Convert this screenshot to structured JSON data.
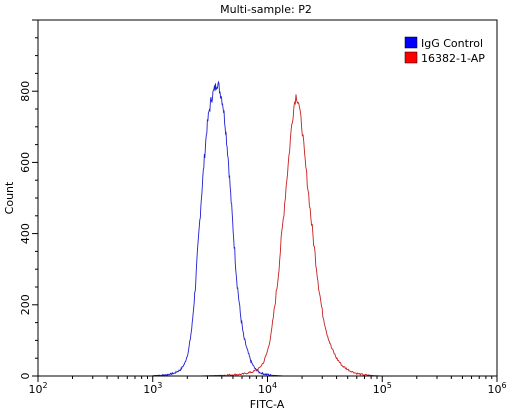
{
  "chart_data": {
    "type": "line",
    "title": "Multi-sample: P2",
    "xlabel": "FITC-A",
    "ylabel": "Count",
    "x_scale": "log",
    "xlim": [
      100,
      1000000
    ],
    "ylim": [
      0,
      1000
    ],
    "x_ticks": [
      {
        "value": 100,
        "base": "10",
        "exp": "2"
      },
      {
        "value": 1000,
        "base": "10",
        "exp": "3"
      },
      {
        "value": 10000,
        "base": "10",
        "exp": "4"
      },
      {
        "value": 100000,
        "base": "10",
        "exp": "5"
      },
      {
        "value": 1000000,
        "base": "10",
        "exp": "6"
      }
    ],
    "y_ticks": [
      0,
      200,
      400,
      600,
      800
    ],
    "grid": false,
    "legend_position": "top-right",
    "series": [
      {
        "name": "IgG Control",
        "color": "#1f1fd0",
        "legend_color": "#0000ff",
        "points": [
          [
            1000,
            1
          ],
          [
            1300,
            3
          ],
          [
            1550,
            8
          ],
          [
            1750,
            18
          ],
          [
            1900,
            35
          ],
          [
            2050,
            70
          ],
          [
            2200,
            140
          ],
          [
            2350,
            250
          ],
          [
            2500,
            380
          ],
          [
            2650,
            500
          ],
          [
            2800,
            600
          ],
          [
            2950,
            690
          ],
          [
            3100,
            745
          ],
          [
            3250,
            780
          ],
          [
            3400,
            800
          ],
          [
            3550,
            815
          ],
          [
            3650,
            825
          ],
          [
            3750,
            815
          ],
          [
            3850,
            800
          ],
          [
            3950,
            790
          ],
          [
            4100,
            760
          ],
          [
            4300,
            700
          ],
          [
            4550,
            610
          ],
          [
            4800,
            500
          ],
          [
            5100,
            380
          ],
          [
            5400,
            270
          ],
          [
            5800,
            175
          ],
          [
            6200,
            110
          ],
          [
            6700,
            70
          ],
          [
            7200,
            40
          ],
          [
            7800,
            20
          ],
          [
            8500,
            10
          ],
          [
            9500,
            5
          ],
          [
            11000,
            2
          ],
          [
            14000,
            0
          ]
        ]
      },
      {
        "name": "16382-1-AP",
        "color": "#c82020",
        "legend_color": "#ff0000",
        "points": [
          [
            2500,
            0
          ],
          [
            4000,
            2
          ],
          [
            6000,
            5
          ],
          [
            7500,
            12
          ],
          [
            8500,
            22
          ],
          [
            9300,
            40
          ],
          [
            10000,
            70
          ],
          [
            10800,
            120
          ],
          [
            11500,
            190
          ],
          [
            12300,
            270
          ],
          [
            13000,
            360
          ],
          [
            13800,
            450
          ],
          [
            14500,
            530
          ],
          [
            15200,
            600
          ],
          [
            15800,
            660
          ],
          [
            16300,
            710
          ],
          [
            16800,
            745
          ],
          [
            17300,
            775
          ],
          [
            17800,
            790
          ],
          [
            18200,
            780
          ],
          [
            18700,
            770
          ],
          [
            19300,
            730
          ],
          [
            20000,
            700
          ],
          [
            21000,
            620
          ],
          [
            22500,
            530
          ],
          [
            24000,
            440
          ],
          [
            26000,
            340
          ],
          [
            28000,
            250
          ],
          [
            30000,
            180
          ],
          [
            33000,
            120
          ],
          [
            36000,
            80
          ],
          [
            40000,
            50
          ],
          [
            45000,
            28
          ],
          [
            52000,
            15
          ],
          [
            60000,
            7
          ],
          [
            70000,
            3
          ],
          [
            85000,
            1
          ],
          [
            100000,
            0
          ]
        ]
      }
    ]
  }
}
